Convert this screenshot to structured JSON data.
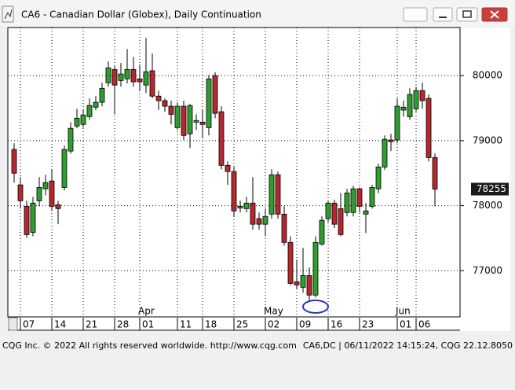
{
  "window_title": "CA6 - Canadian Dollar (Globex), Daily Continuation",
  "footer_left": "CQG Inc. © 2022 All rights reserved worldwide. http://www.cqg.com",
  "footer_right": "CA6,DC | 06/11/2022 14:15:24, CQG 22.12.8050",
  "chart_data": {
    "type": "candlestick",
    "open": [
      78865,
      78320,
      77990,
      77590,
      78075,
      78260,
      78380,
      78015,
      78280,
      78840,
      79225,
      79250,
      79370,
      79515,
      79590,
      79890,
      80095,
      79925,
      79950,
      80095,
      79950,
      79855,
      80075,
      79685,
      79615,
      79530,
      79200,
      79530,
      79105,
      79285,
      79285,
      79200,
      80000,
      79445,
      78620,
      78525,
      77965,
      77955,
      78040,
      77800,
      77715,
      77870,
      78475,
      77870,
      77435,
      76830,
      76745,
      76925,
      76625,
      77410,
      77800,
      78040,
      77955,
      77895,
      77895,
      78260,
      77870,
      77990,
      78260,
      78595,
      79010,
      79010,
      79470,
      79370,
      79490,
      79770,
      79650,
      78740
    ],
    "high": [
      78960,
      78440,
      78075,
      78135,
      78440,
      78475,
      78560,
      78075,
      78925,
      79285,
      79490,
      79470,
      79650,
      79685,
      79890,
      80220,
      80145,
      80195,
      80410,
      80290,
      80170,
      80580,
      80340,
      79770,
      79650,
      79615,
      79590,
      79615,
      79565,
      79405,
      79470,
      80010,
      80050,
      79530,
      78680,
      78595,
      78075,
      78135,
      78440,
      77895,
      77955,
      78560,
      78525,
      77990,
      77530,
      77170,
      77350,
      77050,
      77530,
      77835,
      78075,
      78090,
      78195,
      78260,
      78305,
      78280,
      78040,
      78320,
      78645,
      79080,
      79105,
      79650,
      79615,
      79805,
      79830,
      79890,
      79710,
      78800
    ],
    "low": [
      78355,
      77955,
      77505,
      77530,
      77990,
      78160,
      77920,
      77715,
      78235,
      78800,
      79190,
      79200,
      79320,
      79470,
      79530,
      79830,
      79405,
      79830,
      79880,
      79830,
      79770,
      79735,
      79650,
      79470,
      79445,
      79250,
      79165,
      79010,
      78885,
      79165,
      79045,
      79080,
      79345,
      78560,
      78320,
      77835,
      77895,
      77895,
      77630,
      77630,
      77530,
      77800,
      77800,
      77385,
      76780,
      76710,
      76660,
      76540,
      76590,
      77385,
      77750,
      77655,
      77530,
      77835,
      77835,
      77895,
      77580,
      77955,
      78195,
      78550,
      78840,
      78960,
      79370,
      79320,
      79445,
      79490,
      78680,
      77990
    ],
    "close": [
      78500,
      78075,
      77555,
      78040,
      78280,
      78355,
      77990,
      77955,
      78865,
      79190,
      79345,
      79395,
      79540,
      79590,
      79805,
      80120,
      79855,
      80025,
      80095,
      79905,
      79905,
      80060,
      79685,
      79615,
      79530,
      79405,
      79530,
      79080,
      79540,
      79310,
      79250,
      79950,
      79420,
      78620,
      78525,
      77920,
      77990,
      78040,
      77715,
      77715,
      77835,
      78475,
      77870,
      77435,
      76805,
      76780,
      76925,
      76625,
      77435,
      77775,
      78040,
      77715,
      77555,
      78195,
      78260,
      77990,
      77920,
      78280,
      78595,
      79020,
      78985,
      79530,
      79515,
      79710,
      79770,
      79615,
      78740,
      78255
    ],
    "up_color": "#2e9e2e",
    "down_color": "#b5282e",
    "xlim": [
      -1,
      71
    ],
    "ylim": [
      76290,
      80740
    ],
    "yticks": [
      77000,
      78000,
      79000,
      80000
    ],
    "xticks": [
      {
        "value": 1,
        "label": "07"
      },
      {
        "value": 6,
        "label": "14"
      },
      {
        "value": 11,
        "label": "21"
      },
      {
        "value": 16,
        "label": "28"
      },
      {
        "value": 20,
        "label": "01"
      },
      {
        "value": 26,
        "label": "11"
      },
      {
        "value": 30,
        "label": "18"
      },
      {
        "value": 35,
        "label": "25"
      },
      {
        "value": 40,
        "label": "02"
      },
      {
        "value": 45,
        "label": "09"
      },
      {
        "value": 50,
        "label": "16"
      },
      {
        "value": 55,
        "label": "23"
      },
      {
        "value": 61,
        "label": "01"
      },
      {
        "value": 64,
        "label": "06"
      }
    ],
    "month_ticks": [
      {
        "value": 20,
        "label": "Apr"
      },
      {
        "value": 40,
        "label": "May"
      },
      {
        "value": 61,
        "label": "Jun"
      }
    ],
    "grid": true
  }
}
